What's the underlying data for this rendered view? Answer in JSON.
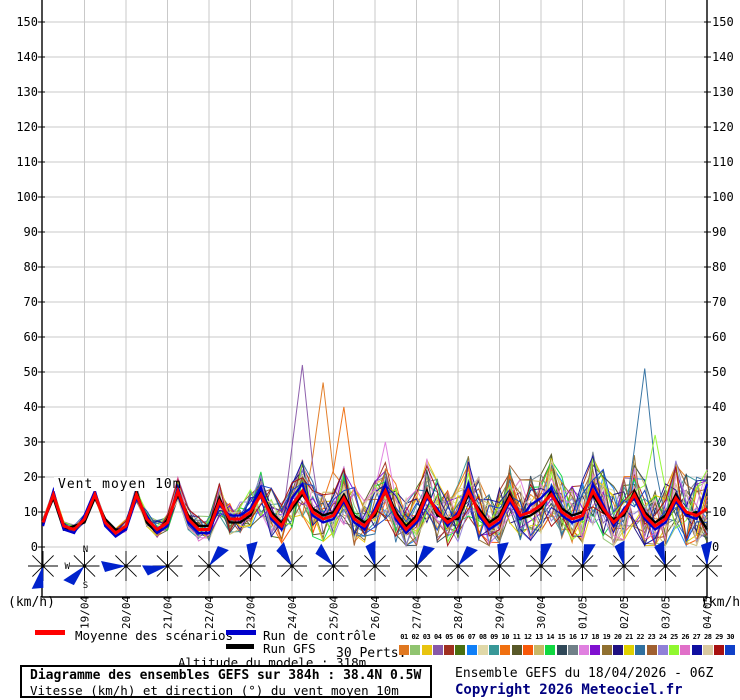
{
  "chart_data": {
    "type": "line",
    "title": "Vent moyen 10m",
    "ylabel_left": "(km/h)",
    "ylabel_right": "(km/h)",
    "ylim": [
      0,
      156
    ],
    "ytick_step": 10,
    "grid": true,
    "x_labels": [
      "19/04",
      "20/04",
      "21/04",
      "22/04",
      "23/04",
      "24/04",
      "25/04",
      "26/04",
      "27/04",
      "28/04",
      "29/04",
      "30/04",
      "01/05",
      "02/05",
      "03/05",
      "04/05"
    ],
    "points_per_day": 4,
    "series": [
      {
        "name": "Moyenne des scénarios",
        "color": "#ff0000",
        "width": 3,
        "values": [
          7,
          15,
          6,
          5,
          8,
          15,
          7,
          4,
          6,
          15,
          8,
          5,
          7,
          16,
          8,
          5,
          5,
          13,
          8,
          8,
          10,
          15,
          9,
          6,
          12,
          16,
          10,
          8,
          9,
          14,
          8,
          6,
          10,
          16,
          9,
          5,
          8,
          15,
          10,
          7,
          9,
          16,
          10,
          6,
          8,
          14,
          9,
          10,
          12,
          15,
          10,
          8,
          9,
          16,
          11,
          7,
          10,
          15,
          9,
          6,
          8,
          14,
          10,
          9,
          11
        ]
      },
      {
        "name": "Run de contrôle",
        "color": "#0000cc",
        "width": 2.3,
        "values": [
          6,
          16,
          5,
          4,
          9,
          16,
          6,
          3,
          5,
          14,
          9,
          4,
          6,
          17,
          7,
          4,
          4,
          12,
          9,
          9,
          11,
          17,
          8,
          5,
          14,
          18,
          9,
          7,
          8,
          13,
          7,
          5,
          11,
          18,
          8,
          4,
          7,
          14,
          11,
          6,
          10,
          18,
          9,
          5,
          7,
          13,
          8,
          12,
          14,
          17,
          9,
          7,
          8,
          18,
          12,
          6,
          11,
          14,
          8,
          5,
          7,
          13,
          9,
          8,
          18
        ]
      },
      {
        "name": "Run GFS",
        "color": "#000000",
        "width": 2.3,
        "values": [
          7,
          14,
          5,
          6,
          7,
          14,
          8,
          5,
          5,
          16,
          7,
          4,
          8,
          15,
          9,
          6,
          6,
          14,
          7,
          7,
          9,
          16,
          10,
          7,
          11,
          15,
          11,
          9,
          10,
          15,
          9,
          7,
          9,
          17,
          10,
          6,
          9,
          16,
          9,
          8,
          8,
          15,
          11,
          7,
          9,
          15,
          8,
          9,
          11,
          16,
          11,
          9,
          10,
          15,
          10,
          8,
          9,
          16,
          10,
          7,
          9,
          15,
          9,
          10,
          5
        ]
      }
    ],
    "perturbations": {
      "label": "30 Perts.",
      "count": 30,
      "numbers": [
        "01",
        "02",
        "03",
        "04",
        "05",
        "06",
        "07",
        "08",
        "09",
        "10",
        "11",
        "12",
        "13",
        "14",
        "15",
        "16",
        "17",
        "18",
        "19",
        "20",
        "21",
        "22",
        "23",
        "24",
        "25",
        "26",
        "27",
        "28",
        "29",
        "30"
      ],
      "colors": [
        "#e07820",
        "#90c470",
        "#e8c410",
        "#8858a8",
        "#a03020",
        "#4a7010",
        "#1080f8",
        "#e0d8a8",
        "#389898",
        "#f07010",
        "#585828",
        "#f85808",
        "#c8b868",
        "#10d840",
        "#304858",
        "#708088",
        "#e080e0",
        "#8010d0",
        "#907030",
        "#201080",
        "#e0d000",
        "#3070a0",
        "#a06030",
        "#9080d8",
        "#90f830",
        "#e070c8",
        "#1010a0",
        "#d8c8a0",
        "#a81010",
        "#1040c8"
      ],
      "spread": [
        1,
        1,
        1,
        1,
        1,
        1,
        1,
        1,
        1.5,
        2,
        2,
        2,
        2,
        3,
        3,
        3,
        3,
        4,
        4,
        4,
        5,
        6,
        6,
        5,
        6,
        7,
        7,
        6,
        6,
        7,
        7,
        6,
        7,
        8,
        7,
        7,
        7,
        8,
        8,
        7,
        7,
        8,
        8,
        7,
        7,
        8,
        8,
        8,
        8,
        9,
        8,
        8,
        8,
        9,
        9,
        8,
        8,
        9,
        9,
        8,
        8,
        9,
        9,
        9,
        9
      ],
      "spikes": [
        {
          "m": 3,
          "i": 25,
          "v": 52
        },
        {
          "m": 0,
          "i": 27,
          "v": 47
        },
        {
          "m": 9,
          "i": 29,
          "v": 40
        },
        {
          "m": 16,
          "i": 33,
          "v": 30
        },
        {
          "m": 21,
          "i": 58,
          "v": 51
        },
        {
          "m": 24,
          "i": 59,
          "v": 32
        }
      ],
      "seed": 20260418
    },
    "wind_arrows": {
      "color": "#0022cc",
      "compass": [
        "N",
        "W",
        "S"
      ],
      "angles_deg": [
        195,
        225,
        270,
        260,
        40,
        5,
        330,
        320,
        350,
        35,
        40,
        10,
        15,
        20,
        350,
        345,
        0
      ]
    }
  },
  "legend": {
    "mean_color": "#ff0000",
    "control_color": "#0000cc",
    "gfs_color": "#000000"
  },
  "footer": {
    "altitude_text": "Altitude du modele : 318m",
    "title_line1": "Diagramme des ensembles GEFS sur 384h : 38.4N 0.5W",
    "title_line2": "Vitesse (km/h) et direction (°) du vent moyen 10m",
    "run_info": "Ensemble GEFS du 18/04/2026 - 06Z",
    "copyright": "Copyright 2026 Meteociel.fr",
    "copyright_color": "#000080"
  }
}
